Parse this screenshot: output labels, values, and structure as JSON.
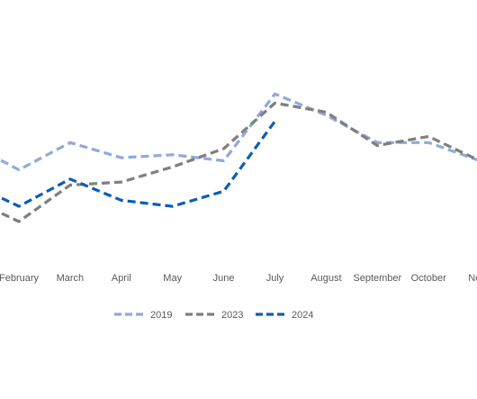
{
  "chart_data": {
    "type": "line",
    "categories": [
      "February",
      "March",
      "April",
      "May",
      "June",
      "July",
      "August",
      "September",
      "October",
      "Nove"
    ],
    "first_point_before_crop": {
      "2019": 62,
      "2023": 44,
      "2024": 49
    },
    "series": [
      {
        "name": "2019",
        "color": "#8faadc",
        "dash": "dashed",
        "values": [
          53,
          62,
          57,
          58,
          56,
          78,
          71,
          62,
          62,
          56
        ]
      },
      {
        "name": "2023",
        "color": "#7f7f7f",
        "dash": "dashed",
        "values": [
          36,
          48,
          49,
          54,
          60,
          75,
          72,
          61,
          64,
          56
        ]
      },
      {
        "name": "2024",
        "color": "#0b5fb4",
        "dash": "dashed",
        "values": [
          41,
          50,
          43,
          41,
          46,
          69,
          null,
          null,
          null,
          null
        ]
      }
    ],
    "title": "",
    "xlabel": "",
    "ylabel": "",
    "ylim": [
      20,
      100
    ],
    "grid": false,
    "legend": "bottom"
  }
}
